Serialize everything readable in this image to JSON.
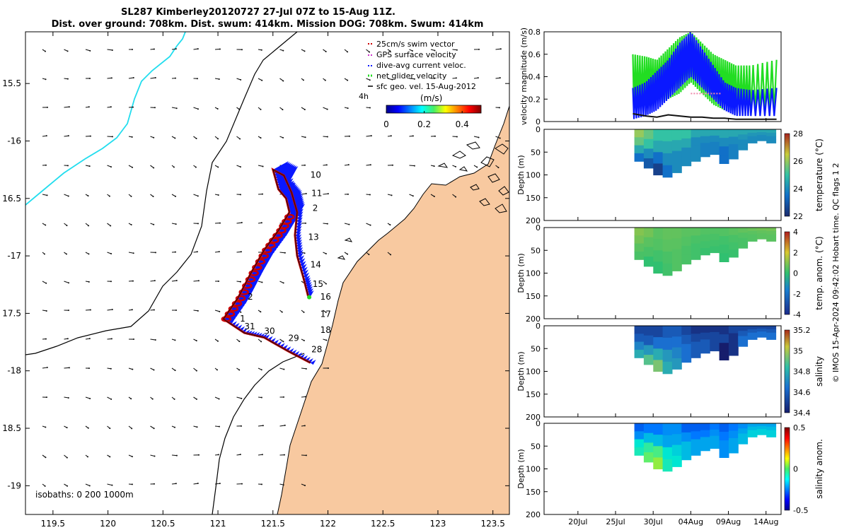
{
  "title_line1": "SL287 Kimberley20120727 27-Jul 07Z to 15-Aug 11Z.",
  "title_line2": "Dist. over ground: 708km. Dist. swum: 414km. Mission DOG: 708km. Swum: 414km",
  "credit": "© IMOS 15-Apr-2024 09:42:02 Hobart time. QC flags 1  2",
  "colors": {
    "land": "#f8c9a0",
    "track": "#cc0000",
    "swath": "#0a18ff",
    "net": "#22dd22",
    "coast_river": "#22ddee"
  },
  "chart_data": [
    {
      "type": "map",
      "id": "track_map",
      "xlabel_ticks": [
        "119.5",
        "120",
        "120.5",
        "121",
        "121.5",
        "122",
        "122.5",
        "123",
        "123.5"
      ],
      "x_tick_values": [
        119.5,
        120,
        120.5,
        121,
        121.5,
        122,
        122.5,
        123,
        123.5
      ],
      "ylabel_ticks": [
        "15.5",
        "-16",
        "16.5",
        "-17",
        "17.5",
        "-18",
        "18.5",
        "-19"
      ],
      "y_tick_values": [
        -15.5,
        -16,
        -16.5,
        -17,
        -17.5,
        -18,
        -18.5,
        -19
      ],
      "xlim": [
        119.25,
        123.65
      ],
      "ylim": [
        -19.25,
        -15.05
      ],
      "legend": {
        "items": [
          "25cm/s swim vector",
          "GPS surface velocity",
          "dive-avg current veloc.",
          "net glider velocity",
          "sfc geo. vel. 15-Aug-2012"
        ],
        "placement": "top-right",
        "extra_label": "4h"
      },
      "colorbar": {
        "label": "(m/s)",
        "ticks": [
          "0",
          "0.2",
          "0.4"
        ],
        "tick_values": [
          0,
          0.2,
          0.4
        ],
        "range": [
          0,
          0.5
        ]
      },
      "day_labels": [
        {
          "text": "10",
          "lon": 121.84,
          "lat": -16.32
        },
        {
          "text": "11",
          "lon": 121.85,
          "lat": -16.48
        },
        {
          "text": "2",
          "lon": 121.86,
          "lat": -16.61
        },
        {
          "text": "13",
          "lon": 121.82,
          "lat": -16.86
        },
        {
          "text": "14",
          "lon": 121.84,
          "lat": -17.1
        },
        {
          "text": "15",
          "lon": 121.86,
          "lat": -17.27
        },
        {
          "text": "16",
          "lon": 121.93,
          "lat": -17.38
        },
        {
          "text": "17",
          "lon": 121.93,
          "lat": -17.53
        },
        {
          "text": "18",
          "lon": 121.93,
          "lat": -17.67
        },
        {
          "text": "2",
          "lon": 121.27,
          "lat": -17.38
        },
        {
          "text": "1",
          "lon": 121.2,
          "lat": -17.57
        },
        {
          "text": "31",
          "lon": 121.24,
          "lat": -17.64
        },
        {
          "text": "30",
          "lon": 121.42,
          "lat": -17.68
        },
        {
          "text": "29",
          "lon": 121.64,
          "lat": -17.74
        },
        {
          "text": "28",
          "lon": 121.85,
          "lat": -17.84
        }
      ],
      "track_path": [
        [
          121.84,
          -17.93
        ],
        [
          121.64,
          -17.83
        ],
        [
          121.42,
          -17.71
        ],
        [
          121.24,
          -17.67
        ],
        [
          121.05,
          -17.55
        ],
        [
          121.18,
          -17.37
        ],
        [
          121.3,
          -17.15
        ],
        [
          121.42,
          -16.95
        ],
        [
          121.55,
          -16.78
        ],
        [
          121.65,
          -16.62
        ],
        [
          121.62,
          -16.5
        ],
        [
          121.55,
          -16.42
        ],
        [
          121.5,
          -16.25
        ],
        [
          121.6,
          -16.3
        ],
        [
          121.67,
          -16.45
        ],
        [
          121.72,
          -16.62
        ],
        [
          121.7,
          -16.82
        ],
        [
          121.72,
          -17.0
        ],
        [
          121.78,
          -17.2
        ],
        [
          121.82,
          -17.35
        ]
      ],
      "net_end": [
        121.83,
        -17.36
      ],
      "isobaths_label": "isobaths: 0   200  1000m"
    },
    {
      "type": "line",
      "id": "velocity_panel",
      "ylabel": "velocity magnitude (m/s)",
      "ylim": [
        0,
        0.8
      ],
      "yticks": [
        "0",
        "0.2",
        "0.4",
        "0.6",
        "0.8"
      ],
      "ytick_values": [
        0,
        0.2,
        0.4,
        0.6,
        0.8
      ],
      "series": [
        {
          "name": "net glider velocity",
          "color": "#22dd22",
          "envelope_low": [
            0.1,
            0.12,
            0.15,
            0.2,
            0.25,
            0.35,
            0.25,
            0.15,
            0.1,
            0.1,
            0.08,
            0.08
          ],
          "envelope_high": [
            0.6,
            0.58,
            0.55,
            0.65,
            0.75,
            0.8,
            0.7,
            0.6,
            0.55,
            0.5,
            0.5,
            0.55
          ]
        },
        {
          "name": "dive-avg current veloc.",
          "color": "#0a18ff",
          "envelope_low": [
            0.02,
            0.05,
            0.1,
            0.2,
            0.3,
            0.4,
            0.3,
            0.2,
            0.1,
            0.05,
            0.05,
            0.05
          ],
          "envelope_high": [
            0.3,
            0.35,
            0.45,
            0.55,
            0.7,
            0.8,
            0.65,
            0.5,
            0.35,
            0.3,
            0.28,
            0.3
          ]
        },
        {
          "name": "swim",
          "color": "#111111",
          "values": [
            0.07,
            0.05,
            0.04,
            0.06,
            0.05,
            0.04,
            0.04,
            0.03,
            0.03,
            0.02,
            0.02,
            0.02
          ]
        }
      ],
      "days": [
        27.3,
        29,
        30.5,
        32,
        33.5,
        35,
        36.5,
        38,
        39.5,
        41,
        43,
        46.4
      ]
    },
    {
      "type": "heatmap",
      "id": "temperature_panel",
      "ylabel": "Depth (m)",
      "colorbar_label": "temperature (°C)",
      "colorbar_ticks": [
        "28",
        "26",
        "24",
        "22"
      ],
      "colorbar_tick_values": [
        28,
        26,
        24,
        22
      ],
      "yticks": [
        "0",
        "50",
        "100",
        "150",
        "200"
      ],
      "ytick_values": [
        0,
        50,
        100,
        150,
        200
      ],
      "bottom_depth": [
        70,
        85,
        100,
        105,
        95,
        80,
        70,
        60,
        55,
        75,
        65,
        45,
        30,
        25,
        30
      ],
      "column_values": [
        [
          26,
          25.5,
          24.5,
          23.5
        ],
        [
          25.5,
          25,
          24,
          23
        ],
        [
          25,
          24.5,
          23.5,
          22.5
        ],
        [
          25,
          24.5,
          24,
          23.5
        ],
        [
          25,
          24.5,
          24,
          24
        ],
        [
          25,
          24.5,
          24,
          24
        ],
        [
          24.5,
          24,
          24,
          24
        ],
        [
          24.5,
          24,
          23.8,
          23.8
        ],
        [
          24.5,
          24,
          23.8,
          23.8
        ],
        [
          24.5,
          24,
          23.5,
          23.5
        ],
        [
          24.5,
          24,
          23.8,
          23.8
        ],
        [
          24.5,
          24.2,
          24,
          24
        ],
        [
          24.5,
          24.2,
          24,
          24
        ],
        [
          24.5,
          24.2,
          24,
          24
        ],
        [
          24.5,
          24.2,
          24,
          24
        ]
      ]
    },
    {
      "type": "heatmap",
      "id": "temp_anom_panel",
      "ylabel": "Depth (m)",
      "colorbar_label": "temp. anom. (°C)",
      "colorbar_ticks": [
        "4",
        "2",
        "0",
        "-2",
        "-4"
      ],
      "colorbar_tick_values": [
        4,
        2,
        0,
        -2,
        -4
      ],
      "yticks": [
        "0",
        "50",
        "100",
        "150",
        "200"
      ],
      "ytick_values": [
        0,
        50,
        100,
        150,
        200
      ],
      "bottom_depth": [
        70,
        85,
        100,
        105,
        95,
        80,
        70,
        60,
        55,
        75,
        65,
        45,
        30,
        25,
        30
      ],
      "column_values": [
        [
          1,
          0.8,
          0.5,
          0.3
        ],
        [
          0.8,
          0.5,
          0.3,
          0
        ],
        [
          0.5,
          0.4,
          0.2,
          0
        ],
        [
          0.6,
          0.5,
          0.3,
          0.2
        ],
        [
          0.6,
          0.5,
          0.4,
          0.4
        ],
        [
          0.5,
          0.4,
          0.3,
          0.3
        ],
        [
          0.5,
          0.3,
          0.2,
          0.2
        ],
        [
          0.4,
          0.3,
          0.2,
          0.1
        ],
        [
          0.4,
          0.3,
          0.2,
          0.1
        ],
        [
          0.4,
          0.2,
          0.1,
          0
        ],
        [
          0.5,
          0.3,
          0.2,
          0.1
        ],
        [
          0.6,
          0.4,
          0.3,
          0.3
        ],
        [
          0.7,
          0.5,
          0.4,
          0.4
        ],
        [
          0.8,
          0.6,
          0.5,
          0.5
        ],
        [
          0.8,
          0.6,
          0.5,
          0.5
        ]
      ]
    },
    {
      "type": "heatmap",
      "id": "salinity_panel",
      "ylabel": "Depth (m)",
      "colorbar_label": "salinity",
      "colorbar_ticks": [
        "35.2",
        "35",
        "34.8",
        "34.6",
        "34.4"
      ],
      "colorbar_tick_values": [
        35.2,
        35,
        34.8,
        34.6,
        34.4
      ],
      "yticks": [
        "0",
        "50",
        "100",
        "150",
        "200"
      ],
      "ytick_values": [
        0,
        50,
        100,
        150,
        200
      ],
      "bottom_depth": [
        70,
        85,
        100,
        105,
        95,
        80,
        70,
        60,
        55,
        75,
        65,
        45,
        30,
        25,
        30
      ],
      "column_values": [
        [
          34.5,
          34.55,
          34.65,
          34.75
        ],
        [
          34.5,
          34.55,
          34.7,
          34.85
        ],
        [
          34.5,
          34.6,
          34.75,
          34.9
        ],
        [
          34.55,
          34.6,
          34.7,
          34.75
        ],
        [
          34.55,
          34.6,
          34.65,
          34.7
        ],
        [
          34.5,
          34.55,
          34.6,
          34.6
        ],
        [
          34.45,
          34.5,
          34.55,
          34.55
        ],
        [
          34.45,
          34.5,
          34.55,
          34.55
        ],
        [
          34.45,
          34.5,
          34.5,
          34.5
        ],
        [
          34.45,
          34.5,
          34.4,
          34.4
        ],
        [
          34.5,
          34.45,
          34.45,
          34.45
        ],
        [
          34.5,
          34.55,
          34.6,
          34.6
        ],
        [
          34.5,
          34.55,
          34.6,
          34.6
        ],
        [
          34.5,
          34.55,
          34.6,
          34.6
        ],
        [
          34.5,
          34.55,
          34.6,
          34.6
        ]
      ]
    },
    {
      "type": "heatmap",
      "id": "salinity_anom_panel",
      "ylabel": "Depth (m)",
      "colorbar_label": "salinity anom.",
      "colorbar_ticks": [
        "0.5",
        "0",
        "-0.5"
      ],
      "colorbar_tick_values": [
        0.5,
        0,
        -0.5
      ],
      "yticks": [
        "0",
        "50",
        "100",
        "150",
        "200"
      ],
      "ytick_values": [
        0,
        50,
        100,
        150,
        200
      ],
      "xticks": [
        "20Jul",
        "25Jul",
        "30Jul",
        "04Aug",
        "09Aug",
        "14Aug"
      ],
      "xtick_values": [
        20,
        25,
        30,
        35,
        40,
        45
      ],
      "xlim": [
        15.5,
        47
      ],
      "bottom_depth": [
        70,
        85,
        100,
        105,
        95,
        80,
        70,
        60,
        55,
        75,
        65,
        45,
        30,
        25,
        30
      ],
      "column_values": [
        [
          -0.3,
          -0.2,
          0,
          0.05
        ],
        [
          -0.25,
          -0.1,
          0.1,
          0.2
        ],
        [
          -0.25,
          -0.1,
          0.15,
          0.3
        ],
        [
          -0.2,
          -0.15,
          0,
          0.05
        ],
        [
          -0.2,
          -0.15,
          -0.05,
          0
        ],
        [
          -0.3,
          -0.2,
          -0.1,
          -0.1
        ],
        [
          -0.3,
          -0.25,
          -0.15,
          -0.15
        ],
        [
          -0.3,
          -0.25,
          -0.15,
          -0.15
        ],
        [
          -0.25,
          -0.2,
          -0.15,
          -0.15
        ],
        [
          -0.3,
          -0.25,
          -0.2,
          -0.2
        ],
        [
          -0.25,
          -0.2,
          -0.15,
          -0.15
        ],
        [
          -0.2,
          -0.15,
          -0.1,
          -0.1
        ],
        [
          -0.15,
          -0.1,
          -0.05,
          -0.05
        ],
        [
          -0.15,
          -0.1,
          -0.05,
          -0.05
        ],
        [
          -0.15,
          -0.1,
          -0.05,
          -0.05
        ]
      ]
    }
  ]
}
